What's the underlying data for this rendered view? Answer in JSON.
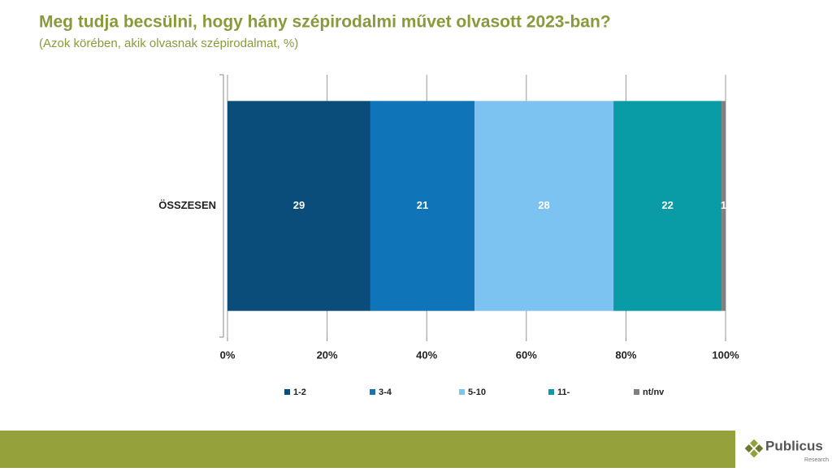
{
  "chart_data": {
    "type": "bar",
    "orientation": "horizontal",
    "stacked": true,
    "title": "Meg tudja becsülni, hogy hány szépirodalmi művet olvasott 2023-ban?",
    "subtitle": "(Azok körében, akik olvasnak szépirodalmat, %)",
    "categories": [
      "ÖSSZESEN"
    ],
    "series": [
      {
        "name": "1-2",
        "color": "#0b4d7a",
        "values": [
          28.7
        ],
        "value_labels": [
          "29"
        ]
      },
      {
        "name": "3-4",
        "color": "#0f74b8",
        "values": [
          20.9
        ],
        "value_labels": [
          "21"
        ]
      },
      {
        "name": "5-10",
        "color": "#7cc3f2",
        "values": [
          27.9
        ],
        "value_labels": [
          "28"
        ]
      },
      {
        "name": "11-",
        "color": "#0a9ca6",
        "values": [
          21.7
        ],
        "value_labels": [
          "22"
        ]
      },
      {
        "name": "nt/nv",
        "color": "#808080",
        "values": [
          0.8
        ],
        "value_labels": [
          "1"
        ]
      }
    ],
    "xlim": [
      0,
      100
    ],
    "xticks": [
      {
        "value": 0,
        "label": "0%"
      },
      {
        "value": 20,
        "label": "20%"
      },
      {
        "value": 40,
        "label": "40%"
      },
      {
        "value": 60,
        "label": "60%"
      },
      {
        "value": 80,
        "label": "80%"
      },
      {
        "value": 100,
        "label": "100%"
      }
    ],
    "grid": true,
    "legend": "bottom"
  },
  "footer": {
    "logo": "Publicus",
    "logo_sub": "Research"
  }
}
